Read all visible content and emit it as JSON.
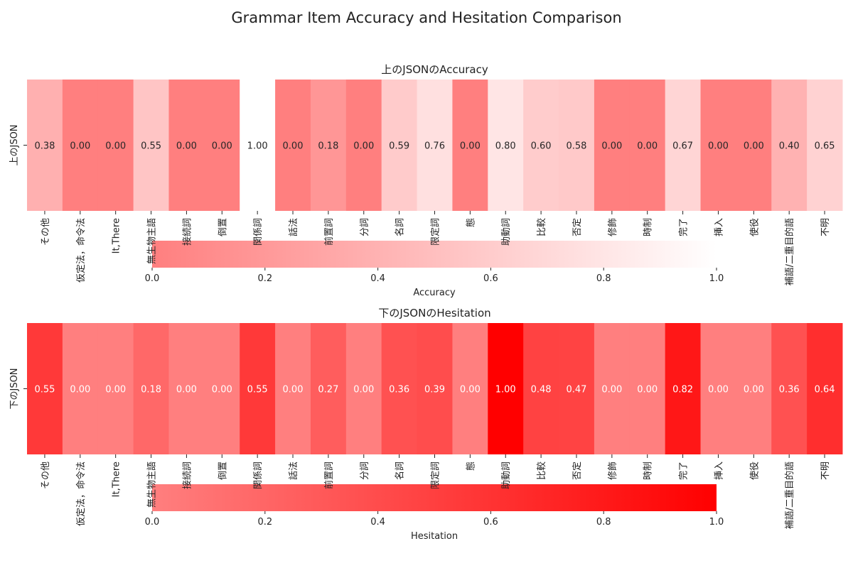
{
  "chart_data": {
    "type": "heatmap",
    "title": "Grammar Item Accuracy and Hesitation Comparison",
    "categories": [
      "その他",
      "仮定法，命令法",
      "It,There",
      "無生物主語",
      "接続詞",
      "倒置",
      "関係詞",
      "話法",
      "前置詞",
      "分詞",
      "名詞",
      "限定詞",
      "態",
      "助動詞",
      "比較",
      "否定",
      "修飾",
      "時制",
      "完了",
      "挿入",
      "使役",
      "補語/二重目的語",
      "不明"
    ],
    "panels": [
      {
        "title": "上のJSONのAccuracy",
        "ylabel": "上のJSON",
        "colorbar_label": "Accuracy",
        "colormap": [
          "#ff7f7f",
          "#ffffff"
        ],
        "vmin": 0.0,
        "vmax": 1.0,
        "colorbar_ticks": [
          "0.0",
          "0.2",
          "0.4",
          "0.6",
          "0.8",
          "1.0"
        ],
        "values": [
          0.38,
          0.0,
          0.0,
          0.55,
          0.0,
          0.0,
          1.0,
          0.0,
          0.18,
          0.0,
          0.59,
          0.76,
          0.0,
          0.8,
          0.6,
          0.58,
          0.0,
          0.0,
          0.67,
          0.0,
          0.0,
          0.4,
          0.65
        ],
        "labels": [
          "0.38",
          "0.00",
          "0.00",
          "0.55",
          "0.00",
          "0.00",
          "1.00",
          "0.00",
          "0.18",
          "0.00",
          "0.59",
          "0.76",
          "0.00",
          "0.80",
          "0.60",
          "0.58",
          "0.00",
          "0.00",
          "0.67",
          "0.00",
          "0.00",
          "0.40",
          "0.65"
        ]
      },
      {
        "title": "下のJSONのHesitation",
        "ylabel": "下のJSON",
        "colorbar_label": "Hesitation",
        "colormap": [
          "#ff7f7f",
          "#ff0000"
        ],
        "vmin": 0.0,
        "vmax": 1.0,
        "colorbar_ticks": [
          "0.0",
          "0.2",
          "0.4",
          "0.6",
          "0.8",
          "1.0"
        ],
        "values": [
          0.55,
          0.0,
          0.0,
          0.18,
          0.0,
          0.0,
          0.55,
          0.0,
          0.27,
          0.0,
          0.36,
          0.39,
          0.0,
          1.0,
          0.48,
          0.47,
          0.0,
          0.0,
          0.82,
          0.0,
          0.0,
          0.36,
          0.64
        ],
        "labels": [
          "0.55",
          "0.00",
          "0.00",
          "0.18",
          "0.00",
          "0.00",
          "0.55",
          "0.00",
          "0.27",
          "0.00",
          "0.36",
          "0.39",
          "0.00",
          "1.00",
          "0.48",
          "0.47",
          "0.00",
          "0.00",
          "0.82",
          "0.00",
          "0.00",
          "0.36",
          "0.64"
        ]
      }
    ]
  }
}
